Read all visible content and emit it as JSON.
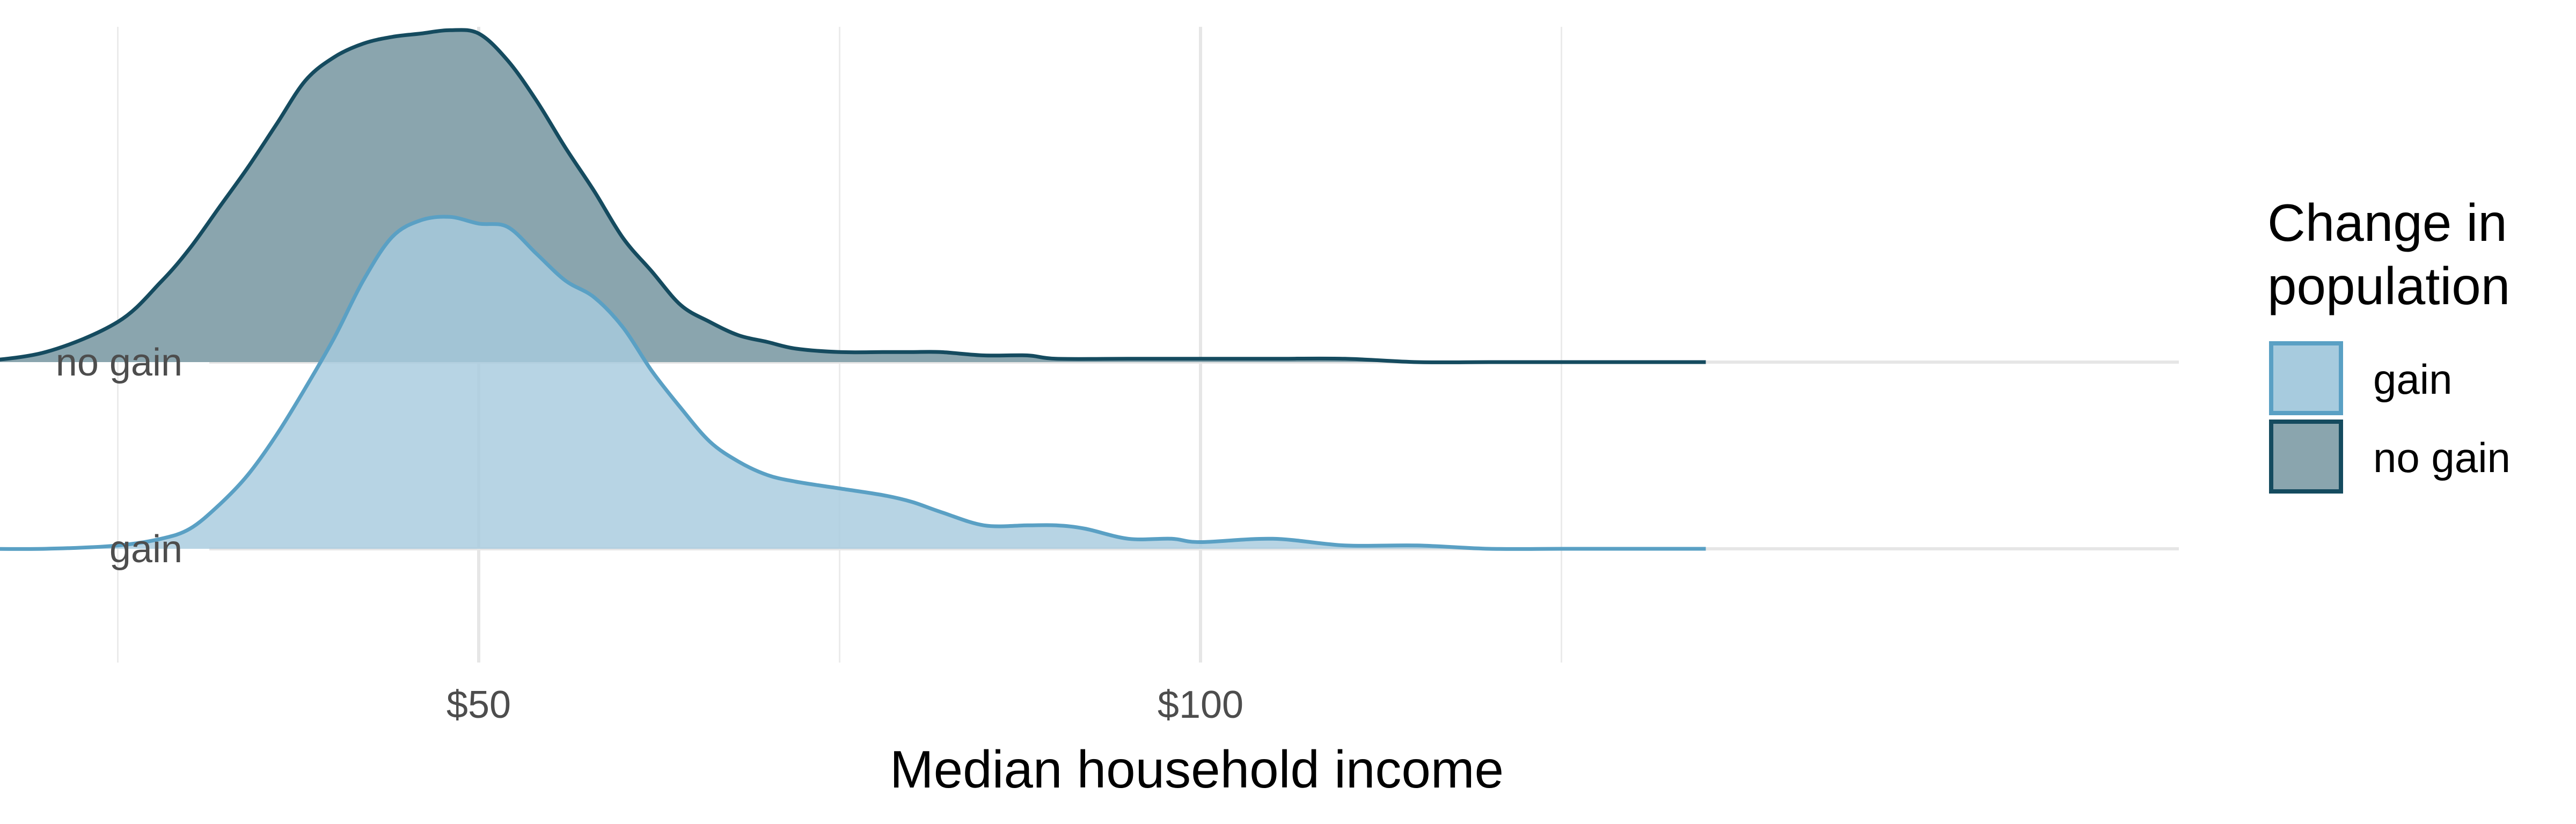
{
  "chart_data": {
    "type": "area",
    "subtype": "ridgeline",
    "title": "",
    "xlabel": "Median household income",
    "ylabel": "",
    "xlim": [
      10,
      135
    ],
    "x_ticks": [
      {
        "value": 50,
        "label": "$50"
      },
      {
        "value": 100,
        "label": "$100"
      }
    ],
    "x_minor_gridlines": [
      25,
      75,
      125
    ],
    "y_categories": [
      "gain",
      "no gain"
    ],
    "grid": true,
    "legend": {
      "title_lines": [
        "Change in",
        "population"
      ],
      "position": "right"
    },
    "series": [
      {
        "name": "gain",
        "color": "#5aa0c4",
        "fill": "#a7cbde",
        "x": [
          15,
          20,
          25,
          28,
          30,
          32,
          34,
          36,
          38,
          40,
          42,
          44,
          46,
          48,
          50,
          52,
          54,
          56,
          58,
          60,
          62,
          64,
          66,
          68,
          70,
          72,
          75,
          78,
          80,
          82,
          85,
          88,
          90,
          92,
          95,
          98,
          100,
          105,
          110,
          115,
          120,
          125,
          130,
          135
        ],
        "density": [
          0.0,
          0.0,
          0.01,
          0.03,
          0.06,
          0.13,
          0.22,
          0.34,
          0.48,
          0.63,
          0.8,
          0.93,
          0.98,
          0.99,
          0.97,
          0.96,
          0.88,
          0.8,
          0.75,
          0.66,
          0.53,
          0.42,
          0.32,
          0.26,
          0.22,
          0.2,
          0.18,
          0.16,
          0.14,
          0.11,
          0.07,
          0.07,
          0.07,
          0.06,
          0.03,
          0.03,
          0.02,
          0.03,
          0.01,
          0.01,
          0.0,
          0.0,
          0.0,
          0.0
        ]
      },
      {
        "name": "no gain",
        "color": "#154b5f",
        "fill": "#8aa5ae",
        "x": [
          15,
          20,
          25,
          28,
          30,
          32,
          34,
          36,
          38,
          40,
          42,
          44,
          46,
          48,
          50,
          52,
          54,
          56,
          58,
          60,
          62,
          64,
          66,
          68,
          70,
          72,
          75,
          78,
          80,
          82,
          85,
          88,
          90,
          95,
          100,
          105,
          110,
          115,
          120,
          125,
          130,
          135
        ],
        "density": [
          0.0,
          0.03,
          0.12,
          0.24,
          0.34,
          0.46,
          0.58,
          0.71,
          0.84,
          0.91,
          0.95,
          0.97,
          0.98,
          0.99,
          0.98,
          0.9,
          0.78,
          0.64,
          0.51,
          0.37,
          0.27,
          0.17,
          0.12,
          0.08,
          0.06,
          0.04,
          0.03,
          0.03,
          0.03,
          0.03,
          0.02,
          0.02,
          0.01,
          0.01,
          0.01,
          0.01,
          0.01,
          0.0,
          0.0,
          0.0,
          0.0,
          0.0
        ]
      }
    ]
  }
}
